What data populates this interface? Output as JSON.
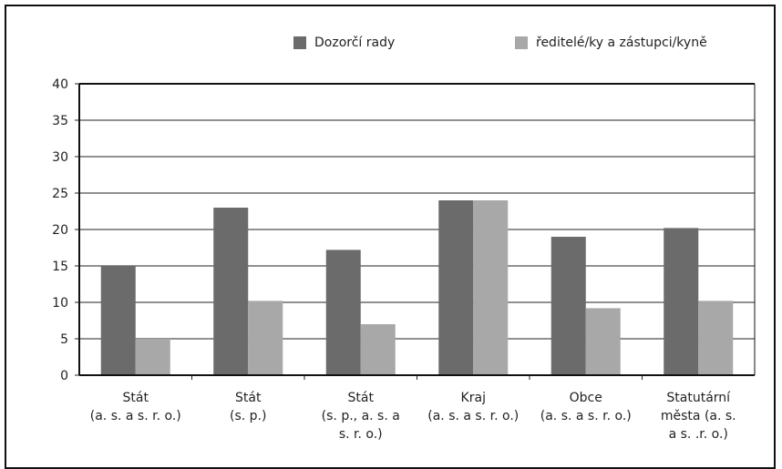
{
  "chart_data": {
    "type": "bar",
    "title": "",
    "xlabel": "",
    "ylabel": "",
    "ylim": [
      0,
      40
    ],
    "yticks": [
      0,
      5,
      10,
      15,
      20,
      25,
      30,
      35,
      40
    ],
    "grid": true,
    "legend_position": "top",
    "categories": [
      [
        "Stát",
        "(a. s. a s. r. o.)"
      ],
      [
        "Stát",
        "(s. p.)"
      ],
      [
        "Stát",
        "(s. p., a. s. a",
        "s. r. o.)"
      ],
      [
        "Kraj",
        "(a. s. a s. r. o.)"
      ],
      [
        "Obce",
        "(a. s. a s. r. o.)"
      ],
      [
        "Statutární",
        "města (a. s.",
        "a s. .r. o.)"
      ]
    ],
    "series": [
      {
        "name": "Dozorčí rady",
        "color": "#6b6b6b",
        "values": [
          15,
          23,
          17.2,
          24,
          19,
          20.2
        ]
      },
      {
        "name": "ředitelé/ky a zástupci/kyně",
        "color": "#a8a8a8",
        "values": [
          5,
          10.2,
          7,
          24,
          9.2,
          10.2
        ]
      }
    ]
  }
}
